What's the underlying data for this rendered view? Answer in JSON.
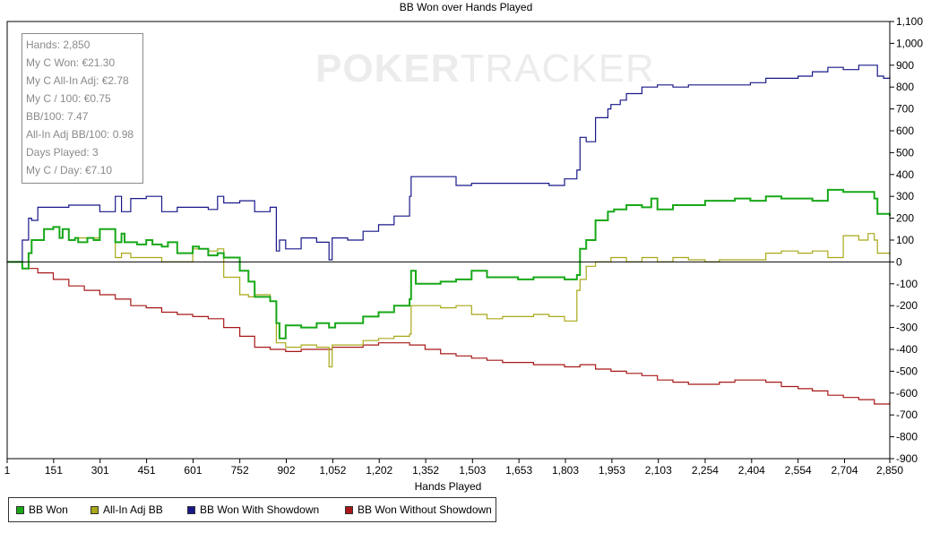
{
  "watermark": {
    "left": "PO",
    "mid": "KER",
    "right": "TRACKER"
  },
  "stats": [
    "Hands: 2,850",
    "My C Won: €21.30",
    "My C All-In Adj: €2.78",
    "My C / 100: €0.75",
    "BB/100: 7.47",
    "All-In Adj BB/100: 0.98",
    "Days Played: 3",
    "My C / Day: €7.10"
  ],
  "chart_data": {
    "type": "line",
    "title": "BB Won over Hands Played",
    "xlabel": "Hands Played",
    "ylabel": "",
    "xlim": [
      1,
      2850
    ],
    "ylim": [
      -900,
      1100
    ],
    "x_ticks": [
      1,
      151,
      301,
      451,
      601,
      752,
      902,
      1052,
      1202,
      1352,
      1503,
      1653,
      1803,
      1953,
      2103,
      2254,
      2404,
      2554,
      2704,
      2850
    ],
    "x_tick_labels": [
      "1",
      "151",
      "301",
      "451",
      "601",
      "752",
      "902",
      "1,052",
      "1,202",
      "1,352",
      "1,503",
      "1,653",
      "1,803",
      "1,953",
      "2,103",
      "2,254",
      "2,404",
      "2,554",
      "2,704",
      "2,850"
    ],
    "y_ticks": [
      1100,
      1000,
      900,
      800,
      700,
      600,
      500,
      400,
      300,
      200,
      100,
      0,
      -100,
      -200,
      -300,
      -400,
      -500,
      -600,
      -700,
      -800,
      -900
    ],
    "y_tick_labels": [
      "1,100",
      "1,000",
      "900",
      "800",
      "700",
      "600",
      "500",
      "400",
      "300",
      "200",
      "100",
      "0",
      "-100",
      "-200",
      "-300",
      "-400",
      "-500",
      "-600",
      "-700",
      "-800",
      "-900"
    ],
    "y_axis_side": "right",
    "grid": false,
    "legend_position": "bottom-left",
    "series": [
      {
        "name": "BB Won",
        "color": "#18a818",
        "x": [
          1,
          50,
          70,
          80,
          100,
          120,
          150,
          170,
          180,
          200,
          220,
          230,
          260,
          280,
          300,
          350,
          370,
          380,
          400,
          420,
          450,
          470,
          500,
          520,
          550,
          600,
          620,
          650,
          680,
          700,
          752,
          780,
          800,
          850,
          870,
          880,
          900,
          950,
          1000,
          1040,
          1060,
          1100,
          1150,
          1200,
          1250,
          1300,
          1305,
          1320,
          1350,
          1400,
          1450,
          1500,
          1550,
          1600,
          1650,
          1700,
          1750,
          1800,
          1840,
          1850,
          1870,
          1900,
          1940,
          1960,
          2000,
          2050,
          2080,
          2100,
          2150,
          2200,
          2254,
          2300,
          2350,
          2400,
          2450,
          2500,
          2554,
          2600,
          2650,
          2700,
          2750,
          2800,
          2810,
          2850
        ],
        "y": [
          0,
          -30,
          40,
          100,
          100,
          150,
          160,
          110,
          150,
          100,
          110,
          90,
          110,
          100,
          150,
          90,
          130,
          90,
          90,
          80,
          100,
          80,
          70,
          90,
          40,
          70,
          60,
          30,
          40,
          20,
          -40,
          -90,
          -160,
          -180,
          -280,
          -350,
          -290,
          -300,
          -280,
          -300,
          -280,
          -280,
          -250,
          -230,
          -200,
          -170,
          -40,
          -100,
          -100,
          -90,
          -80,
          -40,
          -70,
          -70,
          -80,
          -70,
          -70,
          -80,
          -60,
          60,
          100,
          190,
          230,
          240,
          260,
          250,
          290,
          240,
          260,
          260,
          280,
          280,
          290,
          280,
          300,
          290,
          290,
          280,
          330,
          320,
          320,
          290,
          220,
          210
        ]
      },
      {
        "name": "All-In Adj BB",
        "color": "#a8a818",
        "x": [
          1,
          50,
          70,
          80,
          100,
          120,
          150,
          170,
          180,
          200,
          220,
          300,
          350,
          370,
          400,
          450,
          500,
          550,
          600,
          650,
          680,
          700,
          752,
          780,
          800,
          850,
          870,
          900,
          950,
          1000,
          1040,
          1050,
          1100,
          1150,
          1200,
          1250,
          1300,
          1305,
          1350,
          1400,
          1450,
          1500,
          1550,
          1600,
          1650,
          1700,
          1750,
          1800,
          1840,
          1850,
          1870,
          1900,
          1950,
          2000,
          2050,
          2100,
          2150,
          2200,
          2254,
          2300,
          2400,
          2450,
          2500,
          2554,
          2600,
          2650,
          2700,
          2750,
          2780,
          2800,
          2810,
          2850
        ],
        "y": [
          0,
          -30,
          40,
          100,
          100,
          150,
          160,
          110,
          150,
          100,
          110,
          150,
          20,
          40,
          20,
          20,
          0,
          0,
          60,
          50,
          60,
          -70,
          -150,
          -160,
          -150,
          -180,
          -370,
          -390,
          -380,
          -390,
          -480,
          -380,
          -380,
          -360,
          -350,
          -340,
          -330,
          -200,
          -200,
          -210,
          -200,
          -240,
          -260,
          -250,
          -250,
          -240,
          -250,
          -270,
          -130,
          -80,
          -20,
          0,
          20,
          0,
          20,
          0,
          20,
          10,
          0,
          10,
          10,
          40,
          50,
          40,
          50,
          20,
          120,
          100,
          130,
          100,
          40,
          30
        ]
      },
      {
        "name": "BB Won With Showdown",
        "color": "#18188a",
        "x": [
          1,
          50,
          70,
          80,
          100,
          150,
          200,
          300,
          350,
          370,
          400,
          450,
          500,
          550,
          600,
          650,
          680,
          700,
          752,
          780,
          800,
          850,
          870,
          880,
          900,
          950,
          1000,
          1040,
          1050,
          1100,
          1150,
          1200,
          1250,
          1300,
          1305,
          1350,
          1400,
          1450,
          1500,
          1550,
          1600,
          1650,
          1700,
          1750,
          1800,
          1840,
          1850,
          1870,
          1900,
          1940,
          1950,
          1980,
          2000,
          2050,
          2100,
          2150,
          2200,
          2254,
          2300,
          2400,
          2450,
          2500,
          2554,
          2600,
          2650,
          2700,
          2750,
          2780,
          2800,
          2810,
          2830,
          2850
        ],
        "y": [
          0,
          100,
          200,
          190,
          250,
          250,
          260,
          230,
          300,
          230,
          290,
          300,
          230,
          250,
          250,
          240,
          300,
          270,
          280,
          280,
          230,
          250,
          50,
          100,
          60,
          110,
          90,
          10,
          110,
          100,
          140,
          170,
          210,
          300,
          390,
          390,
          390,
          350,
          360,
          360,
          360,
          360,
          360,
          350,
          380,
          420,
          570,
          550,
          660,
          700,
          720,
          740,
          770,
          800,
          810,
          800,
          810,
          810,
          810,
          820,
          840,
          840,
          850,
          870,
          890,
          880,
          900,
          900,
          900,
          850,
          840,
          850
        ]
      },
      {
        "name": "BB Won Without Showdown",
        "color": "#a81818",
        "x": [
          1,
          50,
          100,
          150,
          200,
          250,
          300,
          350,
          400,
          450,
          500,
          550,
          600,
          650,
          700,
          752,
          800,
          850,
          900,
          950,
          1000,
          1050,
          1100,
          1150,
          1200,
          1250,
          1300,
          1350,
          1400,
          1450,
          1500,
          1550,
          1600,
          1650,
          1700,
          1750,
          1800,
          1850,
          1900,
          1950,
          2000,
          2050,
          2100,
          2150,
          2200,
          2254,
          2300,
          2350,
          2400,
          2450,
          2500,
          2554,
          2600,
          2650,
          2700,
          2750,
          2800,
          2850
        ],
        "y": [
          0,
          -30,
          -50,
          -80,
          -110,
          -130,
          -150,
          -170,
          -200,
          -210,
          -230,
          -240,
          -250,
          -260,
          -300,
          -340,
          -390,
          -400,
          -410,
          -400,
          -400,
          -390,
          -390,
          -380,
          -370,
          -370,
          -380,
          -400,
          -420,
          -430,
          -440,
          -450,
          -460,
          -460,
          -470,
          -470,
          -480,
          -470,
          -490,
          -500,
          -510,
          -520,
          -540,
          -550,
          -560,
          -560,
          -550,
          -540,
          -540,
          -550,
          -570,
          -580,
          -590,
          -610,
          -620,
          -630,
          -650,
          -640
        ]
      }
    ]
  }
}
